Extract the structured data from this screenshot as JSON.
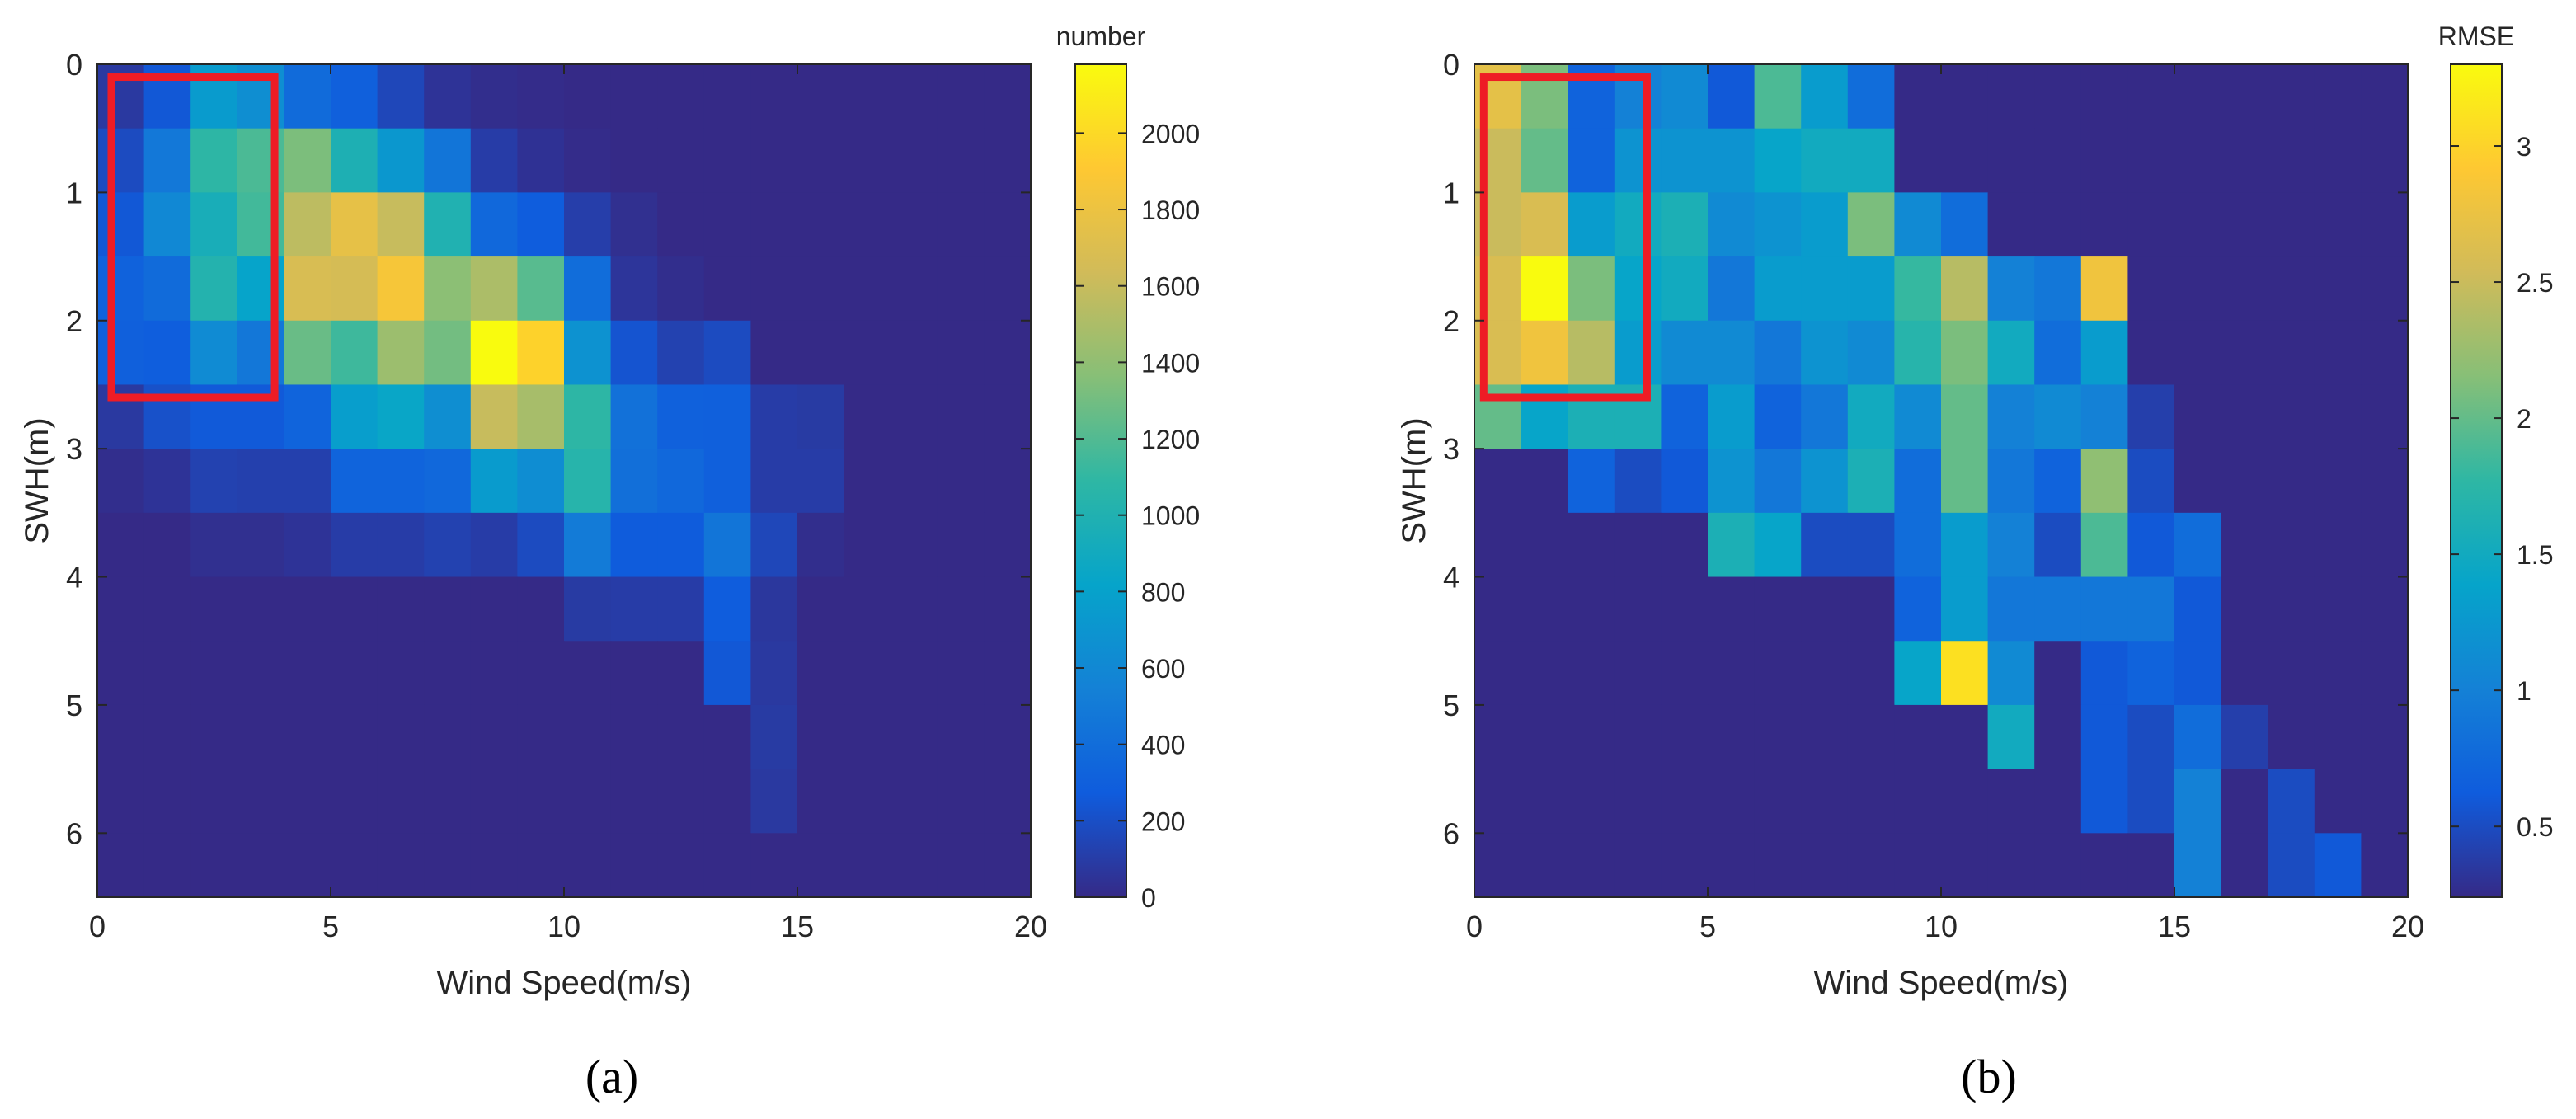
{
  "chart_data": [
    {
      "type": "heatmap",
      "panel_label": "(a)",
      "xlabel": "Wind Speed(m/s)",
      "ylabel": "SWH(m)",
      "xlim": [
        0,
        20
      ],
      "ylim": [
        0,
        6.5
      ],
      "x_ticks": [
        0,
        5,
        10,
        15,
        20
      ],
      "y_ticks": [
        0,
        1,
        2,
        3,
        4,
        5,
        6
      ],
      "x_tick_labels": [
        "0",
        "5",
        "10",
        "15",
        "20"
      ],
      "y_tick_labels": [
        "0",
        "1",
        "2",
        "3",
        "4",
        "5",
        "6"
      ],
      "x_bin_width": 1,
      "y_bin_height": 0.5,
      "background_value": 0,
      "colorbar": {
        "label": "number",
        "range": [
          0,
          2180
        ],
        "ticks": [
          0,
          200,
          400,
          600,
          800,
          1000,
          1200,
          1400,
          1600,
          1800,
          2000
        ],
        "tick_labels": [
          "0",
          "200",
          "400",
          "600",
          "800",
          "1000",
          "1200",
          "1400",
          "1600",
          "1800",
          "2000"
        ]
      },
      "highlight_box": {
        "x": [
          0.3,
          3.8
        ],
        "y": [
          0.1,
          2.6
        ]
      },
      "values": [
        [
          80,
          250,
          750,
          650,
          380,
          300,
          160,
          50,
          20,
          10,
          0,
          0,
          0,
          0,
          0,
          0,
          0,
          0,
          0,
          0
        ],
        [
          180,
          480,
          1080,
          1180,
          1330,
          980,
          720,
          460,
          100,
          40,
          10,
          0,
          0,
          0,
          0,
          0,
          0,
          0,
          0,
          0
        ],
        [
          250,
          600,
          950,
          1150,
          1560,
          1760,
          1600,
          1000,
          360,
          280,
          110,
          30,
          0,
          0,
          0,
          0,
          0,
          0,
          0,
          0
        ],
        [
          320,
          380,
          1020,
          820,
          1680,
          1660,
          1860,
          1380,
          1500,
          1220,
          400,
          60,
          20,
          0,
          0,
          0,
          0,
          0,
          0,
          0
        ],
        [
          300,
          290,
          620,
          470,
          1270,
          1140,
          1440,
          1300,
          2180,
          1960,
          680,
          230,
          130,
          180,
          0,
          0,
          0,
          0,
          0,
          0
        ],
        [
          80,
          210,
          260,
          260,
          330,
          770,
          840,
          650,
          1600,
          1480,
          1080,
          430,
          310,
          300,
          100,
          90,
          0,
          0,
          0,
          0
        ],
        [
          20,
          50,
          130,
          120,
          120,
          330,
          330,
          360,
          750,
          640,
          1040,
          410,
          360,
          300,
          100,
          100,
          0,
          0,
          0,
          0
        ],
        [
          0,
          0,
          30,
          30,
          50,
          100,
          100,
          130,
          100,
          180,
          500,
          270,
          270,
          460,
          160,
          20,
          0,
          0,
          0,
          0
        ],
        [
          0,
          0,
          0,
          0,
          0,
          0,
          0,
          0,
          0,
          0,
          90,
          100,
          100,
          280,
          70,
          0,
          0,
          0,
          0,
          0
        ],
        [
          0,
          0,
          0,
          0,
          0,
          0,
          0,
          0,
          0,
          0,
          0,
          0,
          0,
          250,
          80,
          0,
          0,
          0,
          0,
          0
        ],
        [
          0,
          0,
          0,
          0,
          0,
          0,
          0,
          0,
          0,
          0,
          0,
          0,
          0,
          0,
          90,
          0,
          0,
          0,
          0,
          0
        ],
        [
          0,
          0,
          0,
          0,
          0,
          0,
          0,
          0,
          0,
          0,
          0,
          0,
          0,
          0,
          80,
          0,
          0,
          0,
          0,
          0
        ],
        [
          0,
          0,
          0,
          0,
          0,
          0,
          0,
          0,
          0,
          0,
          0,
          0,
          0,
          0,
          0,
          0,
          0,
          0,
          0,
          0
        ]
      ]
    },
    {
      "type": "heatmap",
      "panel_label": "(b)",
      "xlabel": "Wind Speed(m/s)",
      "ylabel": "SWH(m)",
      "xlim": [
        0,
        20
      ],
      "ylim": [
        0,
        6.5
      ],
      "x_ticks": [
        0,
        5,
        10,
        15,
        20
      ],
      "y_ticks": [
        0,
        1,
        2,
        3,
        4,
        5,
        6
      ],
      "x_tick_labels": [
        "0",
        "5",
        "10",
        "15",
        "20"
      ],
      "y_tick_labels": [
        "0",
        "1",
        "2",
        "3",
        "4",
        "5",
        "6"
      ],
      "x_bin_width": 1,
      "y_bin_height": 0.5,
      "background_value": 0.24,
      "colorbar": {
        "label": "RMSE",
        "range": [
          0.24,
          3.3
        ],
        "ticks": [
          0.5,
          1,
          1.5,
          2,
          2.5,
          3
        ],
        "tick_labels": [
          "0.5",
          "1",
          "1.5",
          "2",
          "2.5",
          "3"
        ]
      },
      "highlight_box": {
        "x": [
          0.2,
          3.7
        ],
        "y": [
          0.1,
          2.6
        ]
      },
      "values": [
        [
          2.7,
          2.1,
          0.7,
          1.0,
          1.1,
          0.6,
          1.9,
          1.3,
          0.8,
          0.24,
          0.24,
          0.24,
          0.24,
          0.24,
          0.24,
          0.24,
          0.24,
          0.24,
          0.24,
          0.24
        ],
        [
          2.5,
          2.0,
          0.7,
          1.2,
          1.2,
          1.2,
          1.4,
          1.5,
          1.5,
          0.24,
          0.24,
          0.24,
          0.24,
          0.24,
          0.24,
          0.24,
          0.24,
          0.24,
          0.24,
          0.24
        ],
        [
          2.5,
          2.6,
          1.3,
          1.5,
          1.6,
          1.1,
          1.2,
          1.3,
          2.1,
          1.1,
          0.8,
          0.24,
          0.24,
          0.24,
          0.24,
          0.24,
          0.24,
          0.24,
          0.24,
          0.24
        ],
        [
          2.6,
          3.3,
          2.1,
          1.4,
          1.5,
          0.9,
          1.3,
          1.3,
          1.3,
          1.8,
          2.4,
          1.0,
          0.9,
          2.8,
          0.24,
          0.24,
          0.24,
          0.24,
          0.24,
          0.24
        ],
        [
          2.6,
          2.8,
          2.4,
          1.3,
          1.1,
          1.1,
          0.9,
          1.2,
          1.1,
          1.7,
          2.1,
          1.5,
          0.8,
          1.3,
          0.24,
          0.24,
          0.24,
          0.24,
          0.24,
          0.24
        ],
        [
          2.0,
          1.4,
          1.6,
          1.6,
          0.7,
          1.3,
          0.7,
          0.9,
          1.5,
          1.1,
          2.0,
          1.0,
          1.1,
          1.0,
          0.4,
          0.24,
          0.24,
          0.24,
          0.24,
          0.24
        ],
        [
          0.24,
          0.24,
          0.7,
          0.5,
          0.6,
          1.2,
          0.9,
          1.2,
          1.6,
          0.8,
          2.0,
          0.9,
          0.7,
          2.2,
          0.5,
          0.24,
          0.24,
          0.24,
          0.24,
          0.24
        ],
        [
          0.24,
          0.24,
          0.24,
          0.24,
          0.24,
          1.6,
          1.4,
          0.5,
          0.5,
          0.8,
          1.3,
          1.0,
          0.5,
          1.9,
          0.6,
          0.8,
          0.24,
          0.24,
          0.24,
          0.24
        ],
        [
          0.24,
          0.24,
          0.24,
          0.24,
          0.24,
          0.24,
          0.24,
          0.24,
          0.24,
          0.7,
          1.3,
          0.9,
          0.9,
          0.9,
          0.9,
          0.6,
          0.24,
          0.24,
          0.24,
          0.24
        ],
        [
          0.24,
          0.24,
          0.24,
          0.24,
          0.24,
          0.24,
          0.24,
          0.24,
          0.24,
          1.4,
          3.1,
          1.1,
          0.24,
          0.6,
          0.7,
          0.6,
          0.24,
          0.24,
          0.24,
          0.24
        ],
        [
          0.24,
          0.24,
          0.24,
          0.24,
          0.24,
          0.24,
          0.24,
          0.24,
          0.24,
          0.24,
          0.24,
          1.5,
          0.24,
          0.6,
          0.5,
          0.8,
          0.4,
          0.24,
          0.24,
          0.24
        ],
        [
          0.24,
          0.24,
          0.24,
          0.24,
          0.24,
          0.24,
          0.24,
          0.24,
          0.24,
          0.24,
          0.24,
          0.24,
          0.24,
          0.6,
          0.5,
          1.0,
          0.24,
          0.5,
          0.24,
          0.24
        ],
        [
          0.24,
          0.24,
          0.24,
          0.24,
          0.24,
          0.24,
          0.24,
          0.24,
          0.24,
          0.24,
          0.24,
          0.24,
          0.24,
          0.24,
          0.24,
          1.0,
          0.24,
          0.5,
          0.6,
          0.24
        ]
      ]
    }
  ],
  "colors": {
    "highlight_box": "#ee1c25",
    "axis": "#262626",
    "parula": [
      "#352a87",
      "#0f5cdd",
      "#1481d6",
      "#06a4ca",
      "#2eb7a4",
      "#87bf77",
      "#d1bb59",
      "#fec832",
      "#f9fb0e"
    ]
  }
}
